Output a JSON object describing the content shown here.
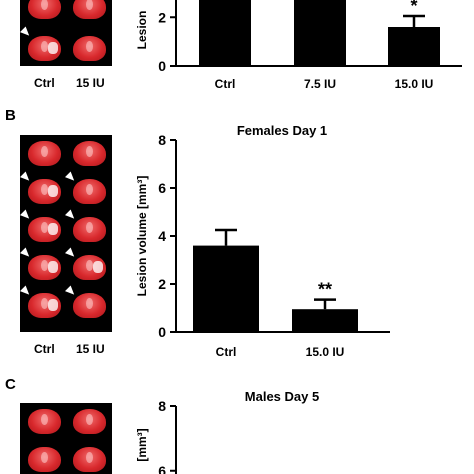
{
  "panels": [
    {
      "letter": "",
      "thumb_labels": [
        "Ctrl",
        "15 IU"
      ],
      "chart_data": {
        "type": "bar",
        "title": "",
        "ylabel": "Lesion",
        "xlabel": "",
        "categories": [
          "Ctrl",
          "7.5 IU",
          "15.0 IU"
        ],
        "values": [
          3.2,
          3.2,
          1.6
        ],
        "errors": [
          0.0,
          0.0,
          0.45
        ],
        "significance": [
          "",
          "",
          "*"
        ],
        "yticks": [
          "0",
          "2"
        ],
        "ylim": [
          0,
          3.2
        ],
        "color": "#000000"
      }
    },
    {
      "letter": "B",
      "thumb_labels": [
        "Ctrl",
        "15 IU"
      ],
      "chart_data": {
        "type": "bar",
        "title": "Females Day 1",
        "ylabel": "Lesion volume [mm³]",
        "xlabel": "",
        "categories": [
          "Ctrl",
          "15.0 IU"
        ],
        "values": [
          3.6,
          0.95
        ],
        "errors": [
          0.65,
          0.4
        ],
        "significance": [
          "",
          "**"
        ],
        "yticks": [
          "0",
          "2",
          "4",
          "6",
          "8"
        ],
        "ylim": [
          0,
          8
        ],
        "color": "#000000"
      }
    },
    {
      "letter": "C",
      "thumb_labels": [],
      "chart_data": {
        "type": "bar",
        "title": "Males Day 5",
        "ylabel": "[mm³]",
        "xlabel": "",
        "categories": [],
        "values": [],
        "errors": [],
        "significance": [],
        "yticks": [
          "6",
          "8"
        ],
        "ylim": [
          0,
          8
        ],
        "color": "#000000"
      }
    }
  ]
}
